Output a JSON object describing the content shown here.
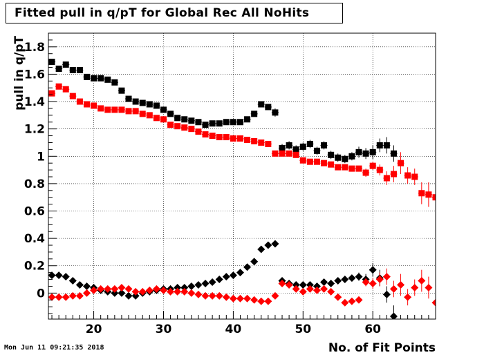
{
  "title": "Fitted pull in q/pT for Global Rec All NoHits",
  "timestamp": "Mon Jun 11 09:21:35 2018",
  "chart_data": {
    "type": "scatter",
    "title": "Fitted pull in q/pT for Global Rec All NoHits",
    "xlabel": "No. of Fit Points",
    "ylabel": "pull in q/pT",
    "xlim": [
      13.5,
      69
    ],
    "ylim": [
      -0.19,
      1.9
    ],
    "xticks": [
      20,
      30,
      40,
      50,
      60
    ],
    "yticks": [
      0,
      0.2,
      0.4,
      0.6,
      0.8,
      1,
      1.2,
      1.4,
      1.6,
      1.8
    ],
    "ytick_labels": [
      "0",
      "0.2",
      "0.4",
      "0.6",
      "0.8",
      "1",
      "1.2",
      "1.4",
      "1.6",
      "1.8"
    ],
    "grid": true,
    "colors": {
      "black": "#000000",
      "red": "#ff0000"
    },
    "series": [
      {
        "marker": "square",
        "color": "#000000",
        "x": [
          14,
          15,
          16,
          17,
          18,
          19,
          20,
          21,
          22,
          23,
          24,
          25,
          26,
          27,
          28,
          29,
          30,
          31,
          32,
          33,
          34,
          35,
          36,
          37,
          38,
          39,
          40,
          41,
          42,
          43,
          44,
          45,
          46,
          47,
          48,
          49,
          50,
          51,
          52,
          53,
          54,
          55,
          56,
          57,
          58,
          59,
          60,
          61,
          62,
          63
        ],
        "y": [
          1.69,
          1.64,
          1.67,
          1.63,
          1.63,
          1.58,
          1.57,
          1.57,
          1.56,
          1.54,
          1.48,
          1.42,
          1.4,
          1.39,
          1.38,
          1.37,
          1.34,
          1.31,
          1.28,
          1.27,
          1.26,
          1.25,
          1.23,
          1.24,
          1.24,
          1.25,
          1.25,
          1.25,
          1.27,
          1.31,
          1.38,
          1.36,
          1.32,
          1.06,
          1.08,
          1.05,
          1.07,
          1.09,
          1.04,
          1.08,
          1.01,
          0.99,
          0.98,
          1.0,
          1.03,
          1.02,
          1.03,
          1.08,
          1.08,
          1.02
        ],
        "err": [
          0.02,
          0.02,
          0.02,
          0.02,
          0.02,
          0.02,
          0.02,
          0.02,
          0.02,
          0.02,
          0.02,
          0.02,
          0.02,
          0.02,
          0.02,
          0.02,
          0.02,
          0.02,
          0.02,
          0.02,
          0.02,
          0.02,
          0.02,
          0.02,
          0.02,
          0.02,
          0.02,
          0.02,
          0.02,
          0.02,
          0.02,
          0.02,
          0.03,
          0.03,
          0.03,
          0.03,
          0.03,
          0.03,
          0.03,
          0.03,
          0.03,
          0.03,
          0.03,
          0.03,
          0.04,
          0.04,
          0.05,
          0.05,
          0.06,
          0.06
        ]
      },
      {
        "marker": "square",
        "color": "#ff0000",
        "x": [
          14,
          15,
          16,
          17,
          18,
          19,
          20,
          21,
          22,
          23,
          24,
          25,
          26,
          27,
          28,
          29,
          30,
          31,
          32,
          33,
          34,
          35,
          36,
          37,
          38,
          39,
          40,
          41,
          42,
          43,
          44,
          45,
          46,
          47,
          48,
          49,
          50,
          51,
          52,
          53,
          54,
          55,
          56,
          57,
          58,
          59,
          60,
          61,
          62,
          63,
          64,
          65,
          66,
          67,
          68,
          69
        ],
        "y": [
          1.46,
          1.51,
          1.49,
          1.44,
          1.4,
          1.38,
          1.37,
          1.35,
          1.34,
          1.34,
          1.34,
          1.33,
          1.33,
          1.31,
          1.3,
          1.28,
          1.27,
          1.23,
          1.22,
          1.21,
          1.2,
          1.18,
          1.16,
          1.15,
          1.14,
          1.14,
          1.13,
          1.13,
          1.12,
          1.11,
          1.1,
          1.09,
          1.02,
          1.02,
          1.02,
          1.01,
          0.97,
          0.96,
          0.96,
          0.95,
          0.94,
          0.92,
          0.92,
          0.91,
          0.91,
          0.88,
          0.93,
          0.9,
          0.84,
          0.87,
          0.95,
          0.86,
          0.85,
          0.73,
          0.72,
          0.7
        ],
        "err": [
          0.02,
          0.02,
          0.02,
          0.02,
          0.02,
          0.02,
          0.02,
          0.02,
          0.02,
          0.02,
          0.02,
          0.02,
          0.02,
          0.02,
          0.02,
          0.02,
          0.02,
          0.02,
          0.02,
          0.02,
          0.02,
          0.02,
          0.02,
          0.02,
          0.02,
          0.02,
          0.02,
          0.02,
          0.02,
          0.02,
          0.02,
          0.02,
          0.02,
          0.02,
          0.02,
          0.02,
          0.02,
          0.02,
          0.02,
          0.02,
          0.02,
          0.02,
          0.02,
          0.02,
          0.02,
          0.03,
          0.03,
          0.04,
          0.05,
          0.06,
          0.08,
          0.06,
          0.06,
          0.08,
          0.09,
          0.12
        ]
      },
      {
        "marker": "diamond",
        "color": "#000000",
        "x": [
          14,
          15,
          16,
          17,
          18,
          19,
          20,
          21,
          22,
          23,
          24,
          25,
          26,
          27,
          28,
          29,
          30,
          31,
          32,
          33,
          34,
          35,
          36,
          37,
          38,
          39,
          40,
          41,
          42,
          43,
          44,
          45,
          46,
          47,
          48,
          49,
          50,
          51,
          52,
          53,
          54,
          55,
          56,
          57,
          58,
          59,
          60,
          61,
          62,
          63
        ],
        "y": [
          0.13,
          0.13,
          0.12,
          0.09,
          0.06,
          0.05,
          0.04,
          0.02,
          0.01,
          0.0,
          0.0,
          -0.02,
          -0.02,
          0.0,
          0.01,
          0.02,
          0.03,
          0.03,
          0.04,
          0.04,
          0.05,
          0.06,
          0.07,
          0.08,
          0.1,
          0.12,
          0.13,
          0.15,
          0.19,
          0.23,
          0.32,
          0.35,
          0.36,
          0.09,
          0.07,
          0.06,
          0.06,
          0.06,
          0.05,
          0.08,
          0.07,
          0.09,
          0.1,
          0.11,
          0.12,
          0.1,
          0.17,
          0.11,
          -0.01,
          -0.17
        ],
        "err": [
          0.02,
          0.02,
          0.02,
          0.02,
          0.02,
          0.02,
          0.02,
          0.02,
          0.02,
          0.02,
          0.02,
          0.02,
          0.02,
          0.02,
          0.02,
          0.02,
          0.02,
          0.02,
          0.02,
          0.02,
          0.02,
          0.02,
          0.02,
          0.02,
          0.02,
          0.02,
          0.02,
          0.02,
          0.02,
          0.02,
          0.02,
          0.02,
          0.02,
          0.02,
          0.02,
          0.02,
          0.02,
          0.02,
          0.02,
          0.02,
          0.02,
          0.02,
          0.02,
          0.02,
          0.03,
          0.04,
          0.05,
          0.06,
          0.06,
          0.08
        ]
      },
      {
        "marker": "diamond",
        "color": "#ff0000",
        "x": [
          14,
          15,
          16,
          17,
          18,
          19,
          20,
          21,
          22,
          23,
          24,
          25,
          26,
          27,
          28,
          29,
          30,
          31,
          32,
          33,
          34,
          35,
          36,
          37,
          38,
          39,
          40,
          41,
          42,
          43,
          44,
          45,
          46,
          47,
          48,
          49,
          50,
          51,
          52,
          53,
          54,
          55,
          56,
          57,
          58,
          59,
          60,
          61,
          62,
          63,
          64,
          65,
          66,
          67,
          68,
          69
        ],
        "y": [
          -0.03,
          -0.03,
          -0.03,
          -0.02,
          -0.02,
          -0.0,
          0.02,
          0.03,
          0.03,
          0.03,
          0.04,
          0.03,
          0.01,
          0.01,
          0.02,
          0.03,
          0.02,
          0.01,
          0.01,
          0.01,
          0.0,
          -0.01,
          -0.02,
          -0.02,
          -0.02,
          -0.03,
          -0.04,
          -0.04,
          -0.04,
          -0.05,
          -0.06,
          -0.06,
          -0.02,
          0.07,
          0.06,
          0.03,
          0.01,
          0.03,
          0.02,
          0.03,
          0.01,
          -0.03,
          -0.07,
          -0.06,
          -0.05,
          0.08,
          0.07,
          0.1,
          0.12,
          0.03,
          0.06,
          -0.03,
          0.04,
          0.09,
          0.04,
          -0.07
        ],
        "err": [
          0.02,
          0.02,
          0.02,
          0.02,
          0.02,
          0.02,
          0.02,
          0.02,
          0.02,
          0.02,
          0.02,
          0.02,
          0.02,
          0.02,
          0.02,
          0.02,
          0.02,
          0.02,
          0.02,
          0.02,
          0.02,
          0.02,
          0.02,
          0.02,
          0.02,
          0.02,
          0.02,
          0.02,
          0.02,
          0.02,
          0.02,
          0.02,
          0.02,
          0.02,
          0.02,
          0.02,
          0.02,
          0.02,
          0.02,
          0.02,
          0.02,
          0.02,
          0.02,
          0.02,
          0.02,
          0.03,
          0.04,
          0.05,
          0.06,
          0.06,
          0.08,
          0.06,
          0.06,
          0.08,
          0.08,
          0.1
        ]
      }
    ]
  }
}
